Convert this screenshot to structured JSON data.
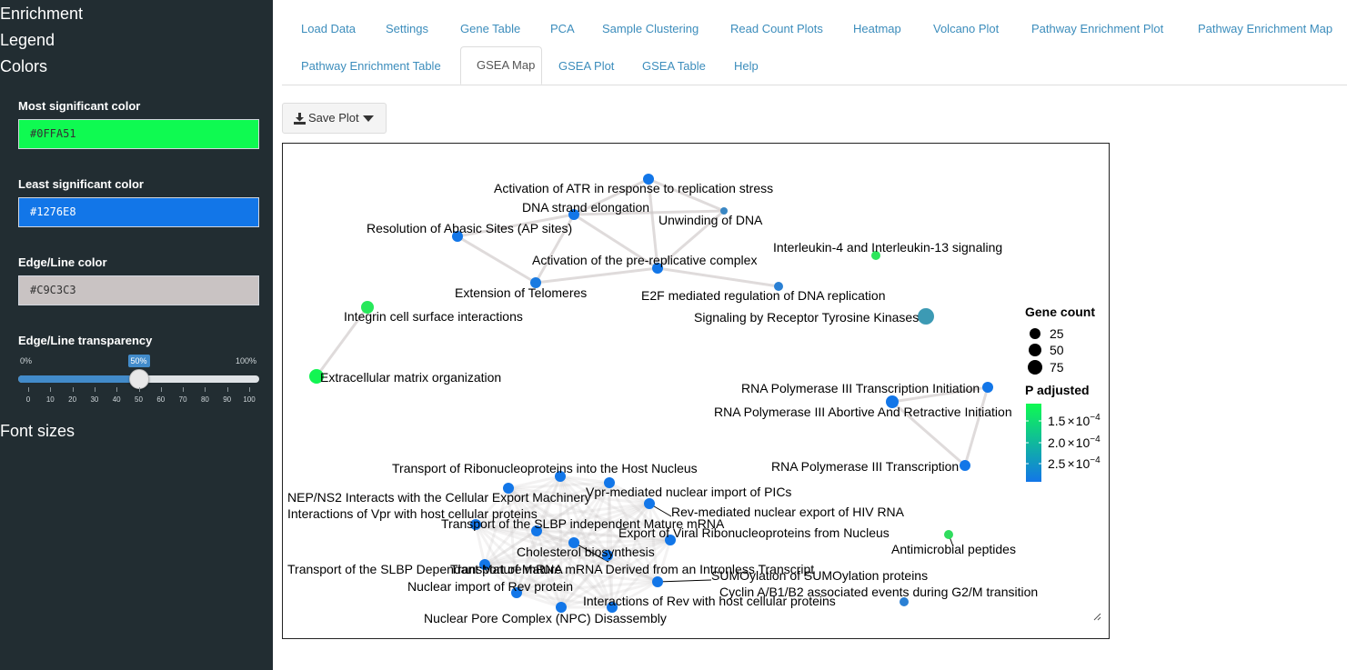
{
  "sidebar": {
    "sections": [
      "Enrichment",
      "Legend",
      "Colors"
    ],
    "font_sizes_label": "Font sizes",
    "most_sig": {
      "label": "Most significant color",
      "value": "#0FFA51",
      "text_color": "#333333"
    },
    "least_sig": {
      "label": "Least significant color",
      "value": "#1276E8",
      "text_color": "#ffffff"
    },
    "edge_color": {
      "label": "Edge/Line color",
      "value": "#C9C3C3",
      "text_color": "#333333"
    },
    "transparency": {
      "label": "Edge/Line transparency",
      "min_label": "0%",
      "max_label": "100%",
      "value": 50,
      "value_label": "50%",
      "ticks": [
        "0",
        "10",
        "20",
        "30",
        "40",
        "50",
        "60",
        "70",
        "80",
        "90",
        "100"
      ]
    }
  },
  "tabs": {
    "row1": [
      "Load Data",
      "Settings",
      "Gene Table",
      "PCA",
      "Sample Clustering",
      "Read Count Plots",
      "Heatmap",
      "Volcano Plot",
      "Pathway Enrichment Plot",
      "Pathway Enrichment Map"
    ],
    "row2": [
      "Pathway Enrichment Table",
      "GSEA Map",
      "GSEA Plot",
      "GSEA Table",
      "Help"
    ],
    "active": "GSEA Map"
  },
  "save_plot_label": "Save Plot",
  "chart_data": {
    "type": "network",
    "legend": {
      "size_title": "Gene count",
      "size_values": [
        "25",
        "50",
        "75"
      ],
      "color_title": "P adjusted",
      "color_ticks": [
        {
          "mantissa": "1.5",
          "base": "10",
          "exponent": "−4",
          "value": 0.00015
        },
        {
          "mantissa": "2.0",
          "base": "10",
          "exponent": "−4",
          "value": 0.0002
        },
        {
          "mantissa": "2.5",
          "base": "10",
          "exponent": "−4",
          "value": 0.00025
        }
      ],
      "color_low": "#0FFA51",
      "color_high": "#1276E8"
    },
    "nodes": [
      {
        "label": "Activation of ATR in response to replication stress",
        "color": "#1276E8"
      },
      {
        "label": "DNA strand elongation",
        "color": "#1276E8"
      },
      {
        "label": "Unwinding of DNA",
        "color": "#3a87c4"
      },
      {
        "label": "Resolution of Abasic Sites (AP sites)",
        "color": "#1276E8"
      },
      {
        "label": "Activation of the pre-replicative complex",
        "color": "#1276E8"
      },
      {
        "label": "Interleukin-4 and Interleukin-13 signaling",
        "color": "#2ee55c"
      },
      {
        "label": "Extension of Telomeres",
        "color": "#1a7be0"
      },
      {
        "label": "E2F mediated regulation of DNA replication",
        "color": "#2a80d4"
      },
      {
        "label": "Integrin cell surface interactions",
        "color": "#27e85a"
      },
      {
        "label": "Signaling by Receptor Tyrosine Kinases",
        "color": "#3c9ab4"
      },
      {
        "label": "Extracellular matrix organization",
        "color": "#12f552"
      },
      {
        "label": "RNA Polymerase III Transcription Initiation",
        "color": "#1276E8"
      },
      {
        "label": "RNA Polymerase III Abortive And Retractive Initiation",
        "color": "#1276E8"
      },
      {
        "label": "RNA Polymerase III Transcription",
        "color": "#1276E8"
      },
      {
        "label": "Transport of Ribonucleoproteins into the Host Nucleus",
        "color": "#1276E8"
      },
      {
        "label": "Vpr-mediated nuclear import of PICs",
        "color": "#1276E8"
      },
      {
        "label": "NEP/NS2 Interacts with the Cellular Export Machinery",
        "color": "#1276E8"
      },
      {
        "label": "Rev-mediated nuclear export of HIV RNA",
        "color": "#1276E8"
      },
      {
        "label": "Interactions of Vpr with host cellular proteins",
        "color": "#1276E8"
      },
      {
        "label": "Transport of the SLBP independent Mature mRNA",
        "color": "#1276E8"
      },
      {
        "label": "Export of Viral Ribonucleoproteins from Nucleus",
        "color": "#1276E8"
      },
      {
        "label": "Antimicrobial peptides",
        "color": "#30dc5e"
      },
      {
        "label": "Cholesterol biosynthesis",
        "color": "#1276E8"
      },
      {
        "label": "Transport of the SLBP Dependant Mature mRNA",
        "color": "#1276E8"
      },
      {
        "label": "Transport of Mature mRNA Derived from an Intronless Transcript",
        "color": "#1276E8"
      },
      {
        "label": "SUMOylation of SUMOylation proteins",
        "color": "#1276E8"
      },
      {
        "label": "Nuclear import of Rev protein",
        "color": "#1276E8"
      },
      {
        "label": "Cyclin A/B1/B2 associated events during G2/M transition",
        "color": "#2a80d4"
      },
      {
        "label": "Interactions of Rev with host cellular proteins",
        "color": "#1276E8"
      },
      {
        "label": "Nuclear Pore Complex (NPC) Disassembly",
        "color": "#1276E8"
      }
    ]
  }
}
